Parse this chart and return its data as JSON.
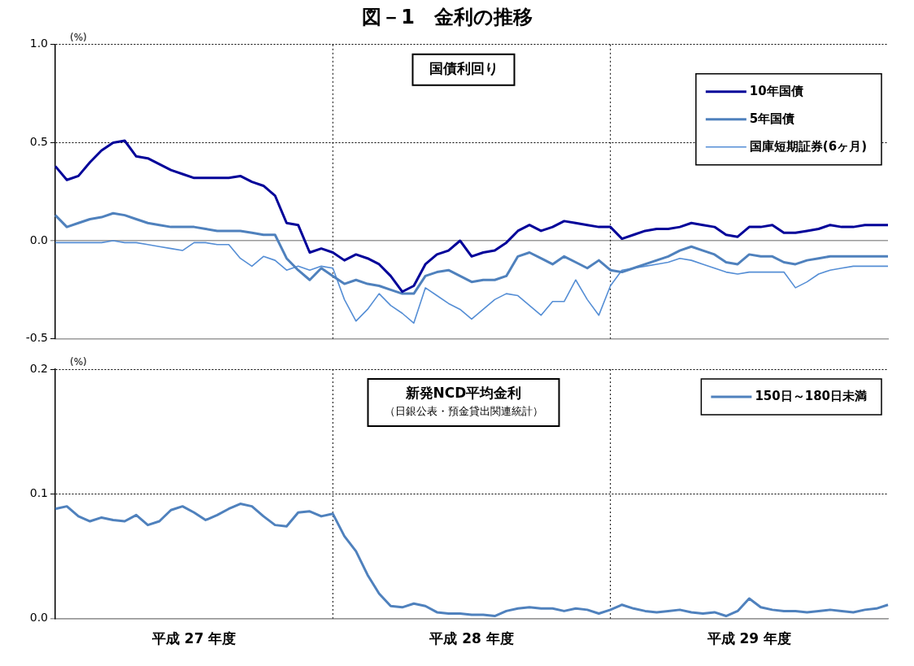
{
  "chart_data": [
    {
      "type": "line",
      "title": "図－1　金利の推移",
      "ylabel": "(%)",
      "annotations": [
        "国債利回り"
      ],
      "categories": [
        null,
        null,
        null,
        null,
        null,
        null,
        null,
        null,
        null,
        null,
        null,
        null,
        null,
        null,
        null,
        null,
        null,
        null,
        null,
        null,
        null,
        null,
        null,
        null,
        null,
        null,
        null,
        null,
        null,
        null,
        null,
        null,
        null,
        null,
        null,
        null,
        null,
        null,
        null,
        null,
        null,
        null,
        null,
        null,
        null,
        null,
        null,
        null,
        null,
        null,
        null,
        null,
        null,
        null,
        null,
        null,
        null,
        null,
        null,
        null,
        null,
        null,
        null,
        null,
        null,
        null,
        null,
        null,
        null,
        null,
        null,
        null,
        null
      ],
      "ylim": [
        -0.5,
        1.0
      ],
      "yticks": [
        {
          "value": -0.5,
          "label": "-0.5"
        },
        {
          "value": 0,
          "label": "0.0"
        },
        {
          "value": 0.5,
          "label": "0.5"
        },
        {
          "value": 1.0,
          "label": "1.0"
        }
      ],
      "tick_labels": "y",
      "grid": "y",
      "legend": "top right",
      "marker": "none",
      "series": [
        {
          "name": "10年国債",
          "color": "#000099",
          "values": [
            0.38,
            0.31,
            0.33,
            0.4,
            0.46,
            0.5,
            0.51,
            0.43,
            0.42,
            0.39,
            0.36,
            0.34,
            0.32,
            0.32,
            0.32,
            0.32,
            0.33,
            0.3,
            0.28,
            0.23,
            0.09,
            0.08,
            -0.06,
            -0.04,
            -0.06,
            -0.1,
            -0.07,
            -0.09,
            -0.12,
            -0.18,
            -0.26,
            -0.23,
            -0.12,
            -0.07,
            -0.05,
            0.0,
            -0.08,
            -0.06,
            -0.05,
            -0.01,
            0.05,
            0.08,
            0.05,
            0.07,
            0.1,
            0.09,
            0.08,
            0.07,
            0.07,
            0.01,
            0.03,
            0.05,
            0.06,
            0.06,
            0.07,
            0.09,
            0.08,
            0.07,
            0.03,
            0.02,
            0.07,
            0.07,
            0.08,
            0.04,
            0.04,
            0.05,
            0.06,
            0.08,
            0.07,
            0.07,
            0.08,
            0.08,
            0.08
          ]
        },
        {
          "name": "5年国債",
          "color": "#4f81bd",
          "values": [
            0.13,
            0.07,
            0.09,
            0.11,
            0.12,
            0.14,
            0.13,
            0.11,
            0.09,
            0.08,
            0.07,
            0.07,
            0.07,
            0.06,
            0.05,
            0.05,
            0.05,
            0.04,
            0.03,
            0.03,
            -0.09,
            -0.15,
            -0.2,
            -0.14,
            -0.18,
            -0.22,
            -0.2,
            -0.22,
            -0.23,
            -0.25,
            -0.27,
            -0.27,
            -0.18,
            -0.16,
            -0.15,
            -0.18,
            -0.21,
            -0.2,
            -0.2,
            -0.18,
            -0.08,
            -0.06,
            -0.09,
            -0.12,
            -0.08,
            -0.11,
            -0.14,
            -0.1,
            -0.15,
            -0.16,
            -0.14,
            -0.12,
            -0.1,
            -0.08,
            -0.05,
            -0.03,
            -0.05,
            -0.07,
            -0.11,
            -0.12,
            -0.07,
            -0.08,
            -0.08,
            -0.11,
            -0.12,
            -0.1,
            -0.09,
            -0.08,
            -0.08,
            -0.08,
            -0.08,
            -0.08,
            -0.08
          ]
        },
        {
          "name": "国庫短期証券(6ヶ月)",
          "color": "#558ed5",
          "values": [
            -0.01,
            -0.01,
            -0.01,
            -0.01,
            -0.01,
            0.0,
            -0.01,
            -0.01,
            -0.02,
            -0.03,
            -0.04,
            -0.05,
            -0.01,
            -0.01,
            -0.02,
            -0.02,
            -0.09,
            -0.13,
            -0.08,
            -0.1,
            -0.15,
            -0.13,
            -0.15,
            -0.13,
            -0.14,
            -0.3,
            -0.41,
            -0.35,
            -0.27,
            -0.33,
            -0.37,
            -0.42,
            -0.24,
            -0.28,
            -0.32,
            -0.35,
            -0.4,
            -0.35,
            -0.3,
            -0.27,
            -0.28,
            -0.33,
            -0.38,
            -0.31,
            -0.31,
            -0.2,
            -0.3,
            -0.38,
            -0.23,
            -0.15,
            -0.14,
            -0.13,
            -0.12,
            -0.11,
            -0.09,
            -0.1,
            -0.12,
            -0.14,
            -0.16,
            -0.17,
            -0.16,
            -0.16,
            -0.16,
            -0.16,
            -0.24,
            -0.21,
            -0.17,
            -0.15,
            -0.14,
            -0.13,
            -0.13,
            -0.13,
            -0.13
          ]
        }
      ]
    },
    {
      "type": "line",
      "ylabel": "(%)",
      "annotations": [
        "新発NCD平均金利",
        "（日銀公表・預金貸出関連統計）"
      ],
      "categories": [
        null,
        null,
        null,
        null,
        null,
        null,
        null,
        null,
        null,
        null,
        null,
        null,
        "平成 27 年度",
        null,
        null,
        null,
        null,
        null,
        null,
        null,
        null,
        null,
        null,
        null,
        null,
        null,
        null,
        null,
        null,
        null,
        null,
        null,
        null,
        null,
        null,
        null,
        "平成 28 年度",
        null,
        null,
        null,
        null,
        null,
        null,
        null,
        null,
        null,
        null,
        null,
        null,
        null,
        null,
        null,
        null,
        null,
        null,
        null,
        null,
        null,
        null,
        null,
        "平成 29 年度",
        null,
        null,
        null,
        null,
        null,
        null,
        null,
        null,
        null,
        null,
        null,
        null
      ],
      "ylim": [
        0,
        0.2
      ],
      "yticks": [
        {
          "value": 0,
          "label": "0.0"
        },
        {
          "value": 0.1,
          "label": "0.1"
        },
        {
          "value": 0.2,
          "label": "0.2"
        }
      ],
      "grid": "y",
      "legend": "top right",
      "marker": "none",
      "series": [
        {
          "name": "150日～180日未満",
          "color": "#4f81bd",
          "values": [
            0.088,
            0.09,
            0.082,
            0.078,
            0.081,
            0.079,
            0.078,
            0.083,
            0.075,
            0.078,
            0.087,
            0.09,
            0.085,
            0.079,
            0.083,
            0.088,
            0.092,
            0.09,
            0.082,
            0.075,
            0.074,
            0.085,
            0.086,
            0.082,
            0.084,
            0.066,
            0.054,
            0.035,
            0.02,
            0.01,
            0.009,
            0.012,
            0.01,
            0.005,
            0.004,
            0.004,
            0.003,
            0.003,
            0.002,
            0.006,
            0.008,
            0.009,
            0.008,
            0.008,
            0.006,
            0.008,
            0.007,
            0.004,
            0.007,
            0.011,
            0.008,
            0.006,
            0.005,
            0.006,
            0.007,
            0.005,
            0.004,
            0.005,
            0.002,
            0.006,
            0.016,
            0.009,
            0.007,
            0.006,
            0.006,
            0.005,
            0.006,
            0.007,
            0.006,
            0.005,
            0.007,
            0.008,
            0.011
          ]
        }
      ]
    }
  ]
}
